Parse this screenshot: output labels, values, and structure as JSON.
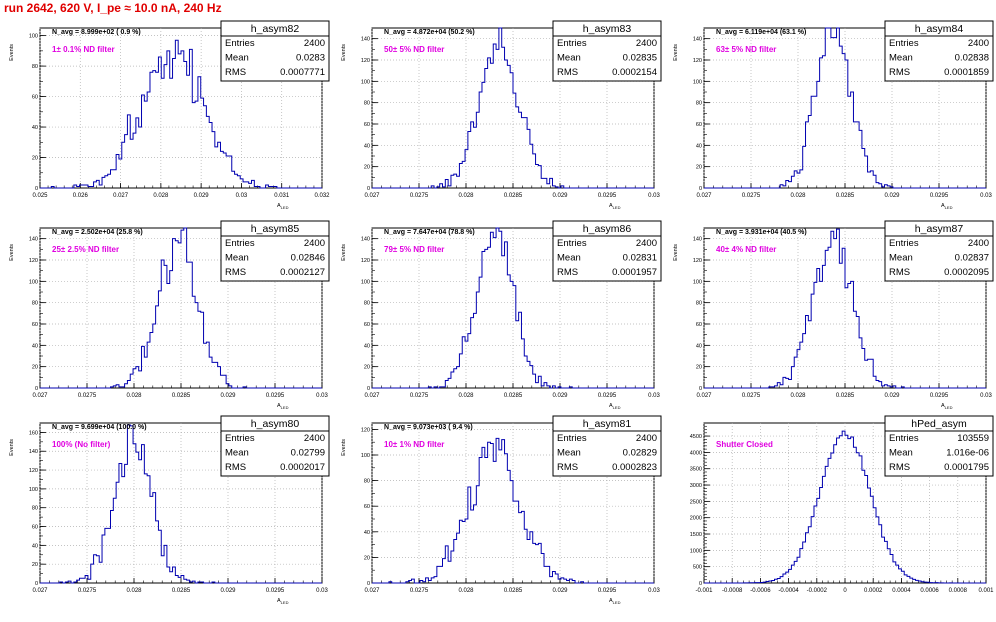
{
  "title": "run 2642,   620 V, I_pe ≈ 10.0 nA, 240 Hz",
  "chart_data": [
    {
      "type": "bar",
      "title": "h_asym82",
      "xlabel": "A_{LED}",
      "ylabel": "Events",
      "navg": "N_avg = 8.999e+02 ( 0.9 %)",
      "filter": "1± 0.1% ND filter",
      "stats": [
        {
          "label": "Entries",
          "value": "2400"
        },
        {
          "label": "Mean",
          "value": "0.0283"
        },
        {
          "label": "RMS",
          "value": "0.0007771"
        }
      ],
      "mean": 0.0283,
      "rms": 0.0007771,
      "entries": 2400,
      "bins": 100,
      "xlim": [
        0.025,
        0.032
      ],
      "ylim": [
        0,
        105
      ],
      "xticks": [
        0.025,
        0.026,
        0.027,
        0.028,
        0.029,
        0.03,
        0.031,
        0.032
      ],
      "xtick_labels": [
        "0.025",
        "0.026",
        "0.027",
        "0.028",
        "0.029",
        "0.03",
        "0.031",
        "0.032"
      ],
      "yticks": [
        0,
        20,
        40,
        60,
        80,
        100
      ],
      "yminor": 10
    },
    {
      "type": "bar",
      "title": "h_asym83",
      "xlabel": "A_{LED}",
      "ylabel": "Events",
      "navg": "N_avg = 4.872e+04 (50.2 %)",
      "filter": "50± 5% ND filter",
      "stats": [
        {
          "label": "Entries",
          "value": "2400"
        },
        {
          "label": "Mean",
          "value": "0.02835"
        },
        {
          "label": "RMS",
          "value": "0.0002154"
        }
      ],
      "mean": 0.02835,
      "rms": 0.0002154,
      "entries": 2400,
      "bins": 100,
      "xlim": [
        0.027,
        0.03
      ],
      "ylim": [
        0,
        150
      ],
      "xticks": [
        0.027,
        0.0275,
        0.028,
        0.0285,
        0.029,
        0.0295,
        0.03
      ],
      "xtick_labels": [
        "0.027",
        "0.0275",
        "0.028",
        "0.0285",
        "0.029",
        "0.0295",
        "0.03"
      ],
      "yticks": [
        0,
        20,
        40,
        60,
        80,
        100,
        120,
        140
      ],
      "yminor": 10
    },
    {
      "type": "bar",
      "title": "h_asym84",
      "xlabel": "A_{LED}",
      "ylabel": "Events",
      "navg": "N_avg = 6.119e+04 (63.1 %)",
      "filter": "63± 5% ND filter",
      "stats": [
        {
          "label": "Entries",
          "value": "2400"
        },
        {
          "label": "Mean",
          "value": "0.02838"
        },
        {
          "label": "RMS",
          "value": "0.0001859"
        }
      ],
      "mean": 0.02838,
      "rms": 0.0001859,
      "entries": 2400,
      "bins": 100,
      "xlim": [
        0.027,
        0.03
      ],
      "ylim": [
        0,
        150
      ],
      "xticks": [
        0.027,
        0.0275,
        0.028,
        0.0285,
        0.029,
        0.0295,
        0.03
      ],
      "xtick_labels": [
        "0.027",
        "0.0275",
        "0.028",
        "0.0285",
        "0.029",
        "0.0295",
        "0.03"
      ],
      "yticks": [
        0,
        20,
        40,
        60,
        80,
        100,
        120,
        140
      ],
      "yminor": 10
    },
    {
      "type": "bar",
      "title": "h_asym85",
      "xlabel": "A_{LED}",
      "ylabel": "Events",
      "navg": "N_avg = 2.502e+04 (25.8 %)",
      "filter": "25± 2.5% ND filter",
      "stats": [
        {
          "label": "Entries",
          "value": "2400"
        },
        {
          "label": "Mean",
          "value": "0.02846"
        },
        {
          "label": "RMS",
          "value": "0.0002127"
        }
      ],
      "mean": 0.02846,
      "rms": 0.0002127,
      "entries": 2400,
      "bins": 100,
      "xlim": [
        0.027,
        0.03
      ],
      "ylim": [
        0,
        150
      ],
      "xticks": [
        0.027,
        0.0275,
        0.028,
        0.0285,
        0.029,
        0.0295,
        0.03
      ],
      "xtick_labels": [
        "0.027",
        "0.0275",
        "0.028",
        "0.0285",
        "0.029",
        "0.0295",
        "0.03"
      ],
      "yticks": [
        0,
        20,
        40,
        60,
        80,
        100,
        120,
        140
      ],
      "yminor": 10
    },
    {
      "type": "bar",
      "title": "h_asym86",
      "xlabel": "A_{LED}",
      "ylabel": "Events",
      "navg": "N_avg = 7.647e+04 (78.8 %)",
      "filter": "79± 5% ND filter",
      "stats": [
        {
          "label": "Entries",
          "value": "2400"
        },
        {
          "label": "Mean",
          "value": "0.02831"
        },
        {
          "label": "RMS",
          "value": "0.0001957"
        }
      ],
      "mean": 0.02831,
      "rms": 0.0001957,
      "entries": 2400,
      "bins": 100,
      "xlim": [
        0.027,
        0.03
      ],
      "ylim": [
        0,
        150
      ],
      "xticks": [
        0.027,
        0.0275,
        0.028,
        0.0285,
        0.029,
        0.0295,
        0.03
      ],
      "xtick_labels": [
        "0.027",
        "0.0275",
        "0.028",
        "0.0285",
        "0.029",
        "0.0295",
        "0.03"
      ],
      "yticks": [
        0,
        20,
        40,
        60,
        80,
        100,
        120,
        140
      ],
      "yminor": 10
    },
    {
      "type": "bar",
      "title": "h_asym87",
      "xlabel": "A_{LED}",
      "ylabel": "Events",
      "navg": "N_avg = 3.931e+04 (40.5 %)",
      "filter": "40± 4% ND filter",
      "stats": [
        {
          "label": "Entries",
          "value": "2400"
        },
        {
          "label": "Mean",
          "value": "0.02837"
        },
        {
          "label": "RMS",
          "value": "0.0002095"
        }
      ],
      "mean": 0.02837,
      "rms": 0.0002095,
      "entries": 2400,
      "bins": 100,
      "xlim": [
        0.027,
        0.03
      ],
      "ylim": [
        0,
        150
      ],
      "xticks": [
        0.027,
        0.0275,
        0.028,
        0.0285,
        0.029,
        0.0295,
        0.03
      ],
      "xtick_labels": [
        "0.027",
        "0.0275",
        "0.028",
        "0.0285",
        "0.029",
        "0.0295",
        "0.03"
      ],
      "yticks": [
        0,
        20,
        40,
        60,
        80,
        100,
        120,
        140
      ],
      "yminor": 10
    },
    {
      "type": "bar",
      "title": "h_asym80",
      "xlabel": "A_{LED}",
      "ylabel": "Events",
      "navg": "N_avg = 9.699e+04 (100.0 %)",
      "filter": "100% (No filter)",
      "stats": [
        {
          "label": "Entries",
          "value": "2400"
        },
        {
          "label": "Mean",
          "value": "0.02799"
        },
        {
          "label": "RMS",
          "value": "0.0002017"
        }
      ],
      "mean": 0.02799,
      "rms": 0.0002017,
      "entries": 2400,
      "bins": 100,
      "xlim": [
        0.027,
        0.03
      ],
      "ylim": [
        0,
        170
      ],
      "xticks": [
        0.027,
        0.0275,
        0.028,
        0.0285,
        0.029,
        0.0295,
        0.03
      ],
      "xtick_labels": [
        "0.027",
        "0.0275",
        "0.028",
        "0.0285",
        "0.029",
        "0.0295",
        "0.03"
      ],
      "yticks": [
        0,
        20,
        40,
        60,
        80,
        100,
        120,
        140,
        160
      ],
      "yminor": 10
    },
    {
      "type": "bar",
      "title": "h_asym81",
      "xlabel": "A_{LED}",
      "ylabel": "Events",
      "navg": "N_avg = 9.073e+03 ( 9.4 %)",
      "filter": "10± 1% ND filter",
      "stats": [
        {
          "label": "Entries",
          "value": "2400"
        },
        {
          "label": "Mean",
          "value": "0.02829"
        },
        {
          "label": "RMS",
          "value": "0.0002823"
        }
      ],
      "mean": 0.02829,
      "rms": 0.0002823,
      "entries": 2400,
      "bins": 100,
      "xlim": [
        0.027,
        0.03
      ],
      "ylim": [
        0,
        125
      ],
      "xticks": [
        0.027,
        0.0275,
        0.028,
        0.0285,
        0.029,
        0.0295,
        0.03
      ],
      "xtick_labels": [
        "0.027",
        "0.0275",
        "0.028",
        "0.0285",
        "0.029",
        "0.0295",
        "0.03"
      ],
      "yticks": [
        0,
        20,
        40,
        60,
        80,
        100,
        120
      ],
      "yminor": 10
    },
    {
      "type": "bar",
      "title": "hPed_asym",
      "xlabel": "",
      "ylabel": "",
      "navg": "",
      "filter": "Shutter Closed",
      "stats": [
        {
          "label": "Entries",
          "value": "103559"
        },
        {
          "label": "Mean",
          "value": "1.016e-06"
        },
        {
          "label": "RMS",
          "value": "0.0001795"
        }
      ],
      "mean": 1.016e-06,
      "rms": 0.0001795,
      "entries": 103559,
      "bins": 100,
      "xlim": [
        -0.001,
        0.001
      ],
      "ylim": [
        0,
        4900
      ],
      "xticks": [
        -0.001,
        -0.0008,
        -0.0006,
        -0.0004,
        -0.0002,
        0,
        0.0002,
        0.0004,
        0.0006,
        0.0008,
        0.001
      ],
      "xtick_labels": [
        "-0.001",
        "-0.0008",
        "-0.0006",
        "-0.0004",
        "-0.0002",
        "0",
        "0.0002",
        "0.0004",
        "0.0006",
        "0.0008",
        "0.001"
      ],
      "yticks": [
        0,
        500,
        1000,
        1500,
        2000,
        2500,
        3000,
        3500,
        4000,
        4500
      ],
      "yminor": 100
    }
  ],
  "colors": {
    "hist": "#0000b0",
    "title": "#e00000",
    "filter": "#e000e0",
    "grid": "#b0b0b0"
  }
}
